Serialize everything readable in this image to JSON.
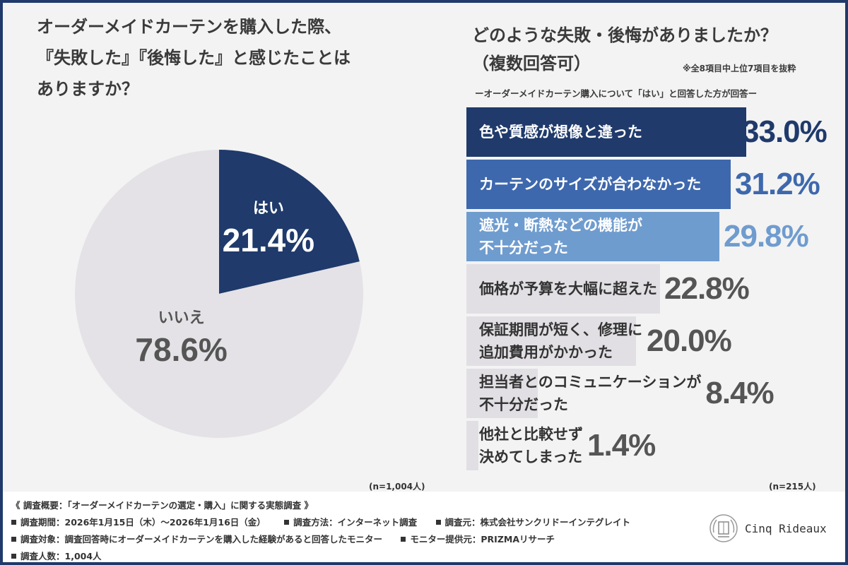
{
  "left_title": "オーダーメイドカーテンを購入した際、\n『失敗した』『後悔した』と感じたことは\nありますか？",
  "right_title": "どのような失敗・後悔がありましたか？\n（複数回答可）",
  "right_note": "※全8項目中上位7項目を抜粋",
  "right_sub": "ーオーダーメイドカーテン購入について「はい」と回答した方が回答ー",
  "n_left": "(n=1,004人)",
  "n_right": "(n=215人)",
  "colors": {
    "dark_navy": "#1f3a6b",
    "mid_blue": "#3e68ad",
    "light_blue": "#6f9ccf",
    "gray_bar": "#e2dfe4",
    "pie_gray": "#e4e2e6",
    "frame": "#1f3a6b"
  },
  "chart_data": [
    {
      "type": "pie",
      "slices": [
        {
          "label": "はい",
          "value": 21.4,
          "display": "21.4%",
          "color": "#1f3a6b",
          "text_color": "#ffffff"
        },
        {
          "label": "いいえ",
          "value": 78.6,
          "display": "78.6%",
          "color": "#e4e2e6",
          "text_color": "#555555"
        }
      ]
    },
    {
      "type": "bar",
      "orientation": "horizontal",
      "xlim": [
        0,
        33.0
      ],
      "categories": [
        "色や質感が想像と違った",
        "カーテンのサイズが合わなかった",
        "遮光・断熱などの機能が\n不十分だった",
        "価格が予算を大幅に超えた",
        "保証期間が短く、修理に\n追加費用がかかった",
        "担当者とのコミュニケーションが\n不十分だった",
        "他社と比較せず\n決めてしまった"
      ],
      "values": [
        33.0,
        31.2,
        29.8,
        22.8,
        20.0,
        8.4,
        1.4
      ],
      "labels": [
        "33.0%",
        "31.2%",
        "29.8%",
        "22.8%",
        "20.0%",
        "8.4%",
        "1.4%"
      ],
      "bar_colors": [
        "#1f3a6b",
        "#3e68ad",
        "#6f9ccf",
        "#e2dfe4",
        "#e2dfe4",
        "#e2dfe4",
        "#e2dfe4"
      ],
      "label_colors": [
        "#ffffff",
        "#ffffff",
        "#ffffff",
        "#333333",
        "#333333",
        "#333333",
        "#333333"
      ],
      "value_colors": [
        "#1f3a6b",
        "#3e68ad",
        "#6f9ccf",
        "#555555",
        "#555555",
        "#555555",
        "#555555"
      ]
    }
  ],
  "footer": {
    "heading": "《 調査概要：「オーダーメイドカーテンの選定・購入」に関する実態調査 》",
    "items": [
      [
        "調査期間：2026年1月15日（木）〜2026年1月16日（金）",
        "調査方法：インターネット調査",
        "調査元：株式会社サンクリドーインテグレイト"
      ],
      [
        "調査対象：調査回答時にオーダーメイドカーテンを購入した経験があると回答したモニター",
        "モニター提供元：PRIZMAリサーチ"
      ],
      [
        "調査人数：1,004人"
      ]
    ]
  },
  "logo": {
    "text": "Cinq Rideaux",
    "icon": "crest-logo"
  }
}
